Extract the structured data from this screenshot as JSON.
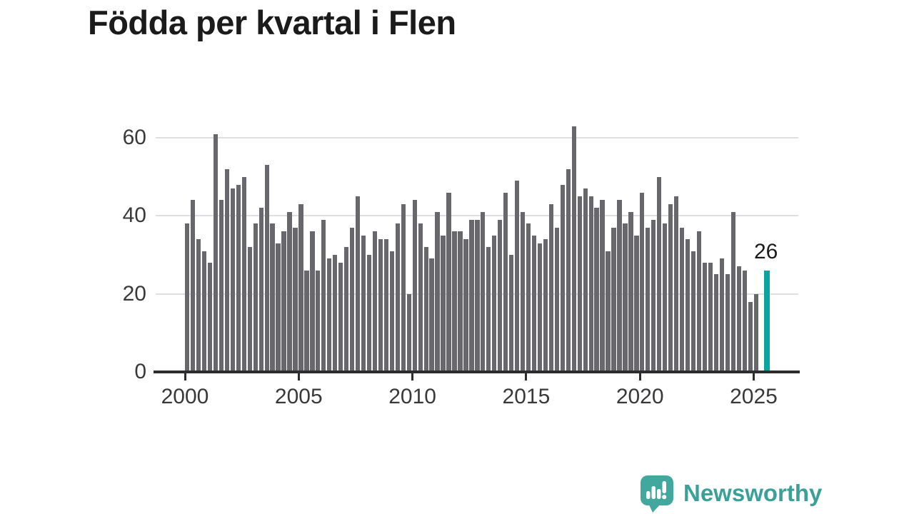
{
  "title": "Födda per kvartal i Flen",
  "annotation": {
    "label": "26"
  },
  "logo": {
    "text": "Newsworthy"
  },
  "colors": {
    "bar": "#67676c",
    "highlight": "#0ba5a1",
    "grid": "#dfdfe2",
    "axis": "#2d2d2f",
    "title": "#1b1b1b",
    "tick_label": "#39393c",
    "logo_icon": "#42a79c",
    "logo_text": "#3aa098",
    "background": "#ffffff"
  },
  "chart_data": {
    "type": "bar",
    "title": "Födda per kvartal i Flen",
    "xlabel": "",
    "ylabel": "",
    "frequency": "quarterly",
    "x_start": "2000 Q1",
    "x_end": "2025 Q2",
    "start_year": 2000,
    "quarters_per_year": 4,
    "values": [
      38,
      44,
      34,
      31,
      28,
      61,
      44,
      52,
      47,
      48,
      50,
      32,
      38,
      42,
      53,
      38,
      33,
      36,
      41,
      37,
      43,
      26,
      36,
      26,
      39,
      29,
      30,
      28,
      32,
      37,
      45,
      35,
      30,
      36,
      34,
      34,
      31,
      38,
      43,
      20,
      44,
      38,
      32,
      29,
      41,
      35,
      46,
      36,
      36,
      34,
      39,
      39,
      41,
      32,
      35,
      39,
      46,
      30,
      49,
      41,
      38,
      35,
      33,
      34,
      43,
      37,
      48,
      52,
      63,
      45,
      47,
      45,
      42,
      44,
      31,
      37,
      44,
      38,
      41,
      35,
      46,
      37,
      39,
      50,
      38,
      43,
      45,
      37,
      34,
      31,
      36,
      28,
      28,
      25,
      29,
      25,
      41,
      27,
      26,
      18,
      20,
      26
    ],
    "highlight_last_bar": true,
    "highlight_last_value": 26,
    "xticks": [
      2000,
      2005,
      2010,
      2015,
      2020,
      2025
    ],
    "yticks": [
      0,
      20,
      40,
      60
    ],
    "ylim": [
      0,
      63
    ],
    "grid": "horizontal",
    "legend": "none"
  }
}
